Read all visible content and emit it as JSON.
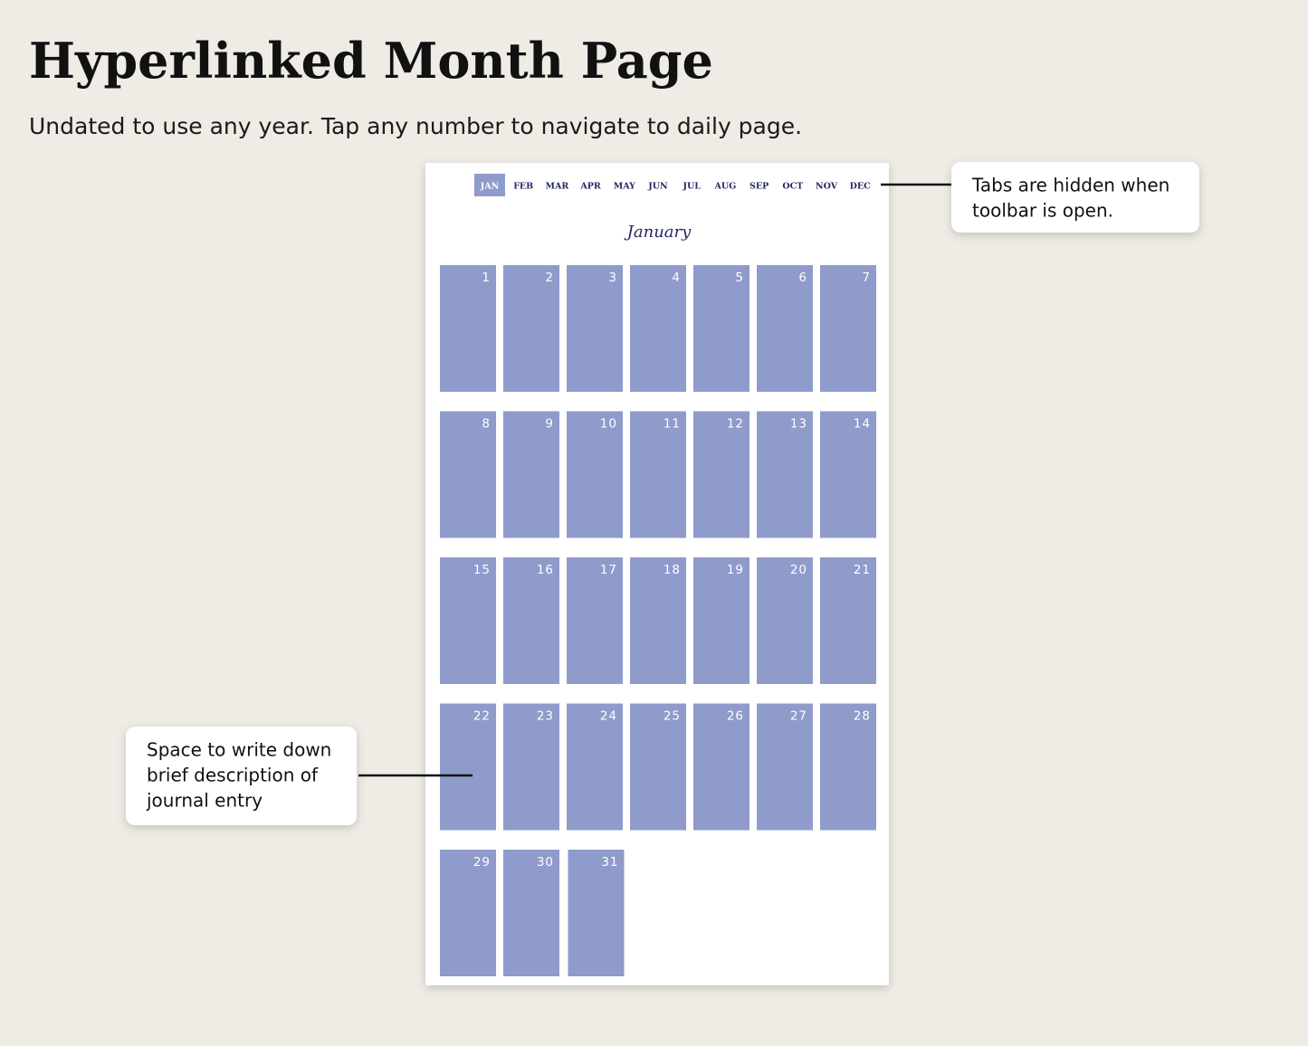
{
  "header": {
    "title": "Hyperlinked Month Page",
    "subtitle": "Undated to use any year. Tap any number to navigate to daily page."
  },
  "planner": {
    "tabs": [
      "JAN",
      "FEB",
      "MAR",
      "APR",
      "MAY",
      "JUN",
      "JUL",
      "AUG",
      "SEP",
      "OCT",
      "NOV",
      "DEC"
    ],
    "active_tab": 0,
    "month": "January",
    "days": [
      1,
      2,
      3,
      4,
      5,
      6,
      7,
      8,
      9,
      10,
      11,
      12,
      13,
      14,
      15,
      16,
      17,
      18,
      19,
      20,
      21,
      22,
      23,
      24,
      25,
      26,
      27,
      28,
      29,
      30,
      31
    ]
  },
  "callouts": [
    {
      "lines": [
        "Tabs are hidden when",
        "toolbar is open."
      ]
    },
    {
      "lines": [
        "Space to write down",
        "brief description of",
        "journal entry"
      ]
    }
  ]
}
